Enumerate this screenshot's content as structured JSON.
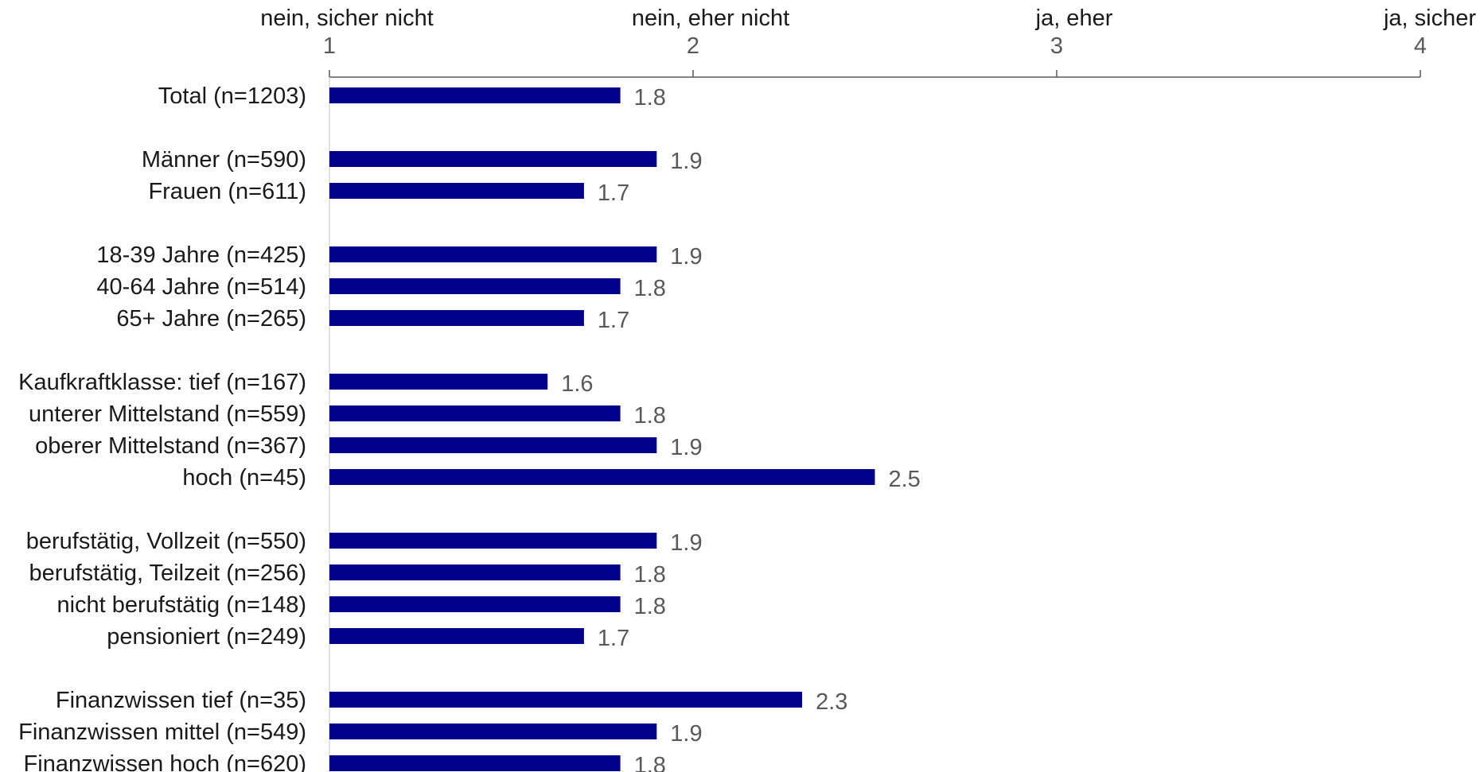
{
  "chart_data": {
    "type": "bar",
    "orientation": "horizontal",
    "x_axis_position": "top",
    "xlim": [
      1,
      4
    ],
    "x_ticks": [
      1,
      2,
      3,
      4
    ],
    "x_tick_labels": [
      "1",
      "2",
      "3",
      "4"
    ],
    "scale_labels": [
      "nein, sicher nicht",
      "nein, eher nicht",
      "ja, eher",
      "ja, sicher"
    ],
    "grid": false,
    "legend": "none",
    "bar_color": "#00008B",
    "groups": [
      {
        "categories": [
          "Total (n=1203)"
        ],
        "values": [
          1.8
        ],
        "labels": [
          "1.8"
        ]
      },
      {
        "categories": [
          "Männer (n=590)",
          "Frauen (n=611)"
        ],
        "values": [
          1.9,
          1.7
        ],
        "labels": [
          "1.9",
          "1.7"
        ]
      },
      {
        "categories": [
          "18-39 Jahre (n=425)",
          "40-64 Jahre (n=514)",
          "65+ Jahre (n=265)"
        ],
        "values": [
          1.9,
          1.8,
          1.7
        ],
        "labels": [
          "1.9",
          "1.8",
          "1.7"
        ]
      },
      {
        "categories": [
          "Kaufkraftklasse: tief (n=167)",
          "unterer Mittelstand (n=559)",
          "oberer Mittelstand (n=367)",
          "hoch (n=45)"
        ],
        "values": [
          1.6,
          1.8,
          1.9,
          2.5
        ],
        "labels": [
          "1.6",
          "1.8",
          "1.9",
          "2.5"
        ]
      },
      {
        "categories": [
          "berufstätig, Vollzeit (n=550)",
          "berufstätig, Teilzeit (n=256)",
          "nicht berufstätig (n=148)",
          "pensioniert (n=249)"
        ],
        "values": [
          1.9,
          1.8,
          1.8,
          1.7
        ],
        "labels": [
          "1.9",
          "1.8",
          "1.8",
          "1.7"
        ]
      },
      {
        "categories": [
          "Finanzwissen tief (n=35)",
          "Finanzwissen mittel (n=549)",
          "Finanzwissen hoch (n=620)"
        ],
        "values": [
          2.3,
          1.9,
          1.8
        ],
        "labels": [
          "2.3",
          "1.9",
          "1.8"
        ]
      }
    ]
  }
}
